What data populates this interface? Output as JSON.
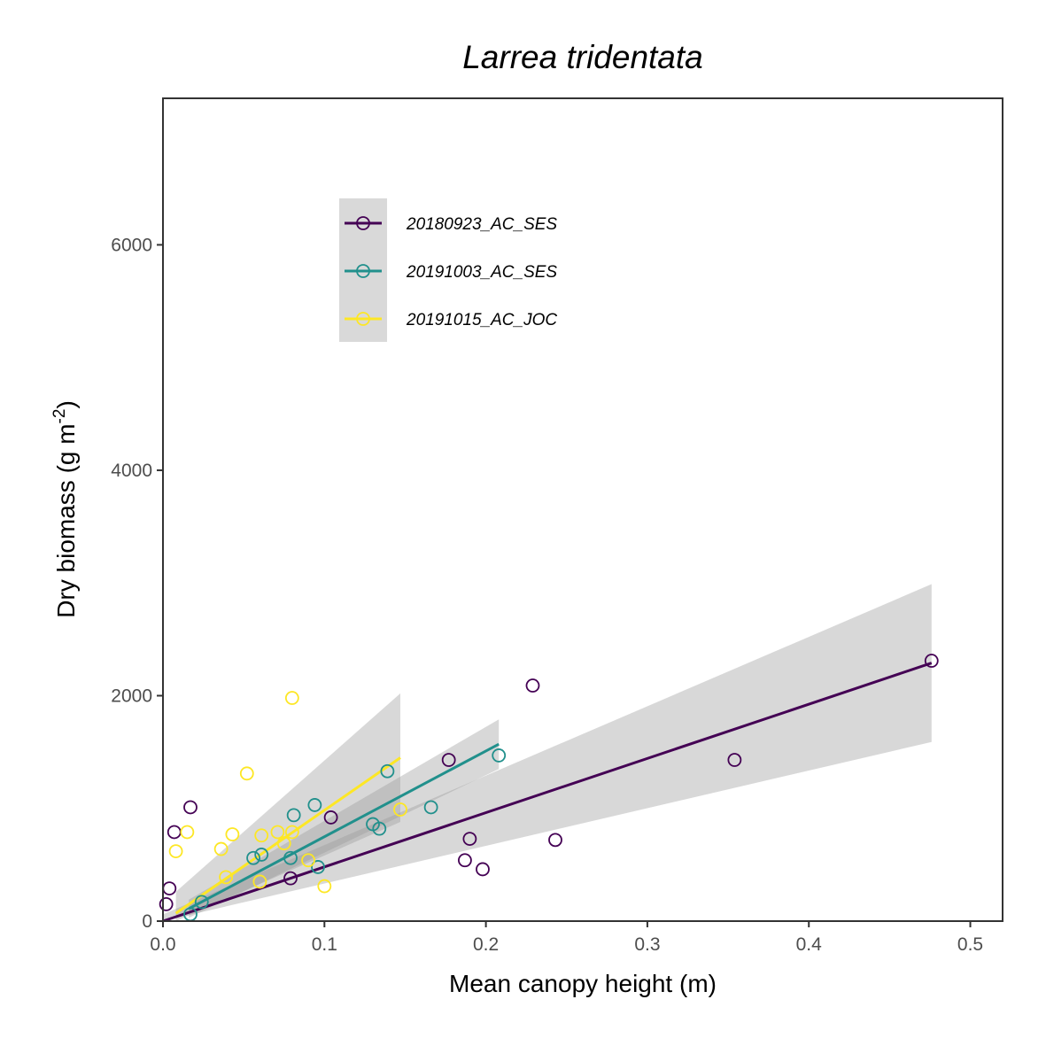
{
  "chart_data": {
    "type": "scatter",
    "title": "Larrea tridentata",
    "xlabel": "Mean canopy height (m)",
    "ylabel": "Dry biomass (g m",
    "ylabel_sup": "-2",
    "ylabel_close": ")",
    "xlim": [
      0,
      0.52
    ],
    "ylim": [
      0,
      7300
    ],
    "x_ticks": [
      0.0,
      0.1,
      0.2,
      0.3,
      0.4,
      0.5
    ],
    "x_tick_labels": [
      "0.0",
      "0.1",
      "0.2",
      "0.3",
      "0.4",
      "0.5"
    ],
    "y_ticks": [
      0,
      2000,
      4000,
      6000
    ],
    "y_tick_labels": [
      "0",
      "2000",
      "4000",
      "6000"
    ],
    "grid": false,
    "legend_position": "top-left inside",
    "series": [
      {
        "name": "20180923_AC_SES",
        "color": "#440154",
        "points": [
          [
            0.002,
            150
          ],
          [
            0.004,
            290
          ],
          [
            0.007,
            790
          ],
          [
            0.017,
            1010
          ],
          [
            0.079,
            380
          ],
          [
            0.104,
            920
          ],
          [
            0.177,
            1430
          ],
          [
            0.187,
            540
          ],
          [
            0.19,
            730
          ],
          [
            0.198,
            460
          ],
          [
            0.229,
            2090
          ],
          [
            0.243,
            720
          ],
          [
            0.354,
            1430
          ],
          [
            0.476,
            2310
          ]
        ],
        "fit": {
          "x0": 0.0,
          "x1": 0.476,
          "y0": 0,
          "y1": 2290
        },
        "ci_upper": [
          [
            0.0,
            60
          ],
          [
            0.476,
            2990
          ]
        ],
        "ci_lower": [
          [
            0.0,
            -60
          ],
          [
            0.476,
            1590
          ]
        ]
      },
      {
        "name": "20191003_AC_SES",
        "color": "#21908C",
        "points": [
          [
            0.017,
            60
          ],
          [
            0.024,
            170
          ],
          [
            0.056,
            560
          ],
          [
            0.061,
            590
          ],
          [
            0.079,
            560
          ],
          [
            0.081,
            940
          ],
          [
            0.094,
            1030
          ],
          [
            0.096,
            480
          ],
          [
            0.13,
            860
          ],
          [
            0.134,
            820
          ],
          [
            0.139,
            1330
          ],
          [
            0.166,
            1010
          ],
          [
            0.208,
            1470
          ]
        ],
        "fit": {
          "x0": 0.016,
          "x1": 0.208,
          "y0": 110,
          "y1": 1570
        },
        "ci_upper": [
          [
            0.016,
            190
          ],
          [
            0.208,
            1790
          ]
        ],
        "ci_lower": [
          [
            0.016,
            30
          ],
          [
            0.208,
            1350
          ]
        ]
      },
      {
        "name": "20191015_AC_JOC",
        "color": "#FDE725",
        "points": [
          [
            0.008,
            620
          ],
          [
            0.015,
            790
          ],
          [
            0.036,
            640
          ],
          [
            0.039,
            390
          ],
          [
            0.043,
            770
          ],
          [
            0.052,
            1310
          ],
          [
            0.06,
            350
          ],
          [
            0.061,
            760
          ],
          [
            0.071,
            790
          ],
          [
            0.075,
            690
          ],
          [
            0.08,
            1980
          ],
          [
            0.08,
            790
          ],
          [
            0.09,
            540
          ],
          [
            0.1,
            310
          ],
          [
            0.147,
            990
          ]
        ],
        "fit": {
          "x0": 0.008,
          "x1": 0.147,
          "y0": 70,
          "y1": 1450
        },
        "ci_upper": [
          [
            0.008,
            260
          ],
          [
            0.147,
            2020
          ]
        ],
        "ci_lower": [
          [
            0.008,
            -120
          ],
          [
            0.147,
            880
          ]
        ]
      }
    ]
  }
}
